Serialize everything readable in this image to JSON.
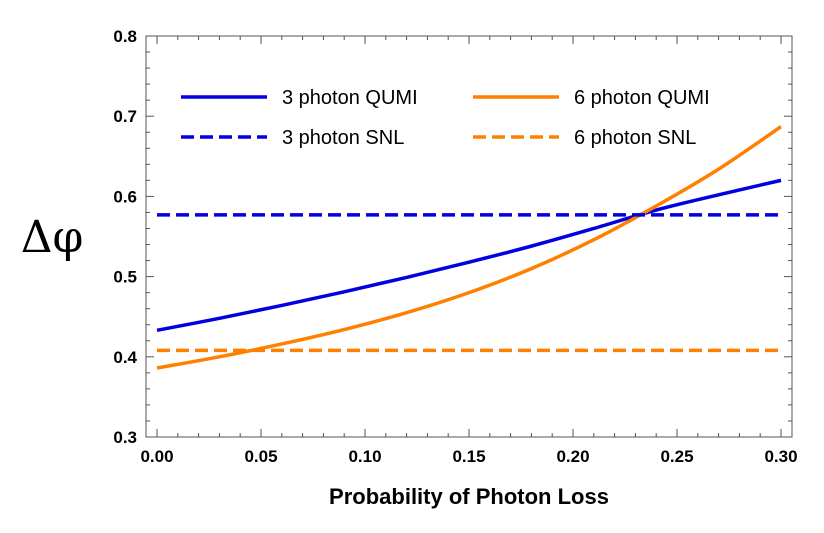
{
  "chart_data": {
    "type": "line",
    "title": "",
    "xlabel": "Probability of Photon Loss",
    "ylabel": "Δφ",
    "xlim": [
      0.0,
      0.3
    ],
    "ylim": [
      0.3,
      0.8
    ],
    "xticks": [
      "0.00",
      "0.05",
      "0.10",
      "0.15",
      "0.20",
      "0.25",
      "0.30"
    ],
    "yticks": [
      "0.3",
      "0.4",
      "0.5",
      "0.6",
      "0.7",
      "0.8"
    ],
    "legend_position": "top",
    "grid": false,
    "x": [
      0.0,
      0.03,
      0.06,
      0.09,
      0.12,
      0.15,
      0.18,
      0.21,
      0.24,
      0.27,
      0.3
    ],
    "series": [
      {
        "name": "3 photon QUMI",
        "color": "#0000e0",
        "dash": false,
        "values": [
          0.433,
          0.448,
          0.464,
          0.481,
          0.499,
          0.518,
          0.538,
          0.56,
          0.583,
          0.602,
          0.62
        ]
      },
      {
        "name": "6 photon QUMI",
        "color": "#ff8000",
        "dash": false,
        "values": [
          0.386,
          0.4,
          0.416,
          0.434,
          0.455,
          0.48,
          0.51,
          0.546,
          0.588,
          0.634,
          0.687
        ]
      },
      {
        "name": "3 photon SNL",
        "color": "#0000e0",
        "dash": true,
        "values": [
          0.577,
          0.577,
          0.577,
          0.577,
          0.577,
          0.577,
          0.577,
          0.577,
          0.577,
          0.577,
          0.577
        ]
      },
      {
        "name": "6 photon SNL",
        "color": "#ff8000",
        "dash": true,
        "values": [
          0.408,
          0.408,
          0.408,
          0.408,
          0.408,
          0.408,
          0.408,
          0.408,
          0.408,
          0.408,
          0.408
        ]
      }
    ]
  }
}
